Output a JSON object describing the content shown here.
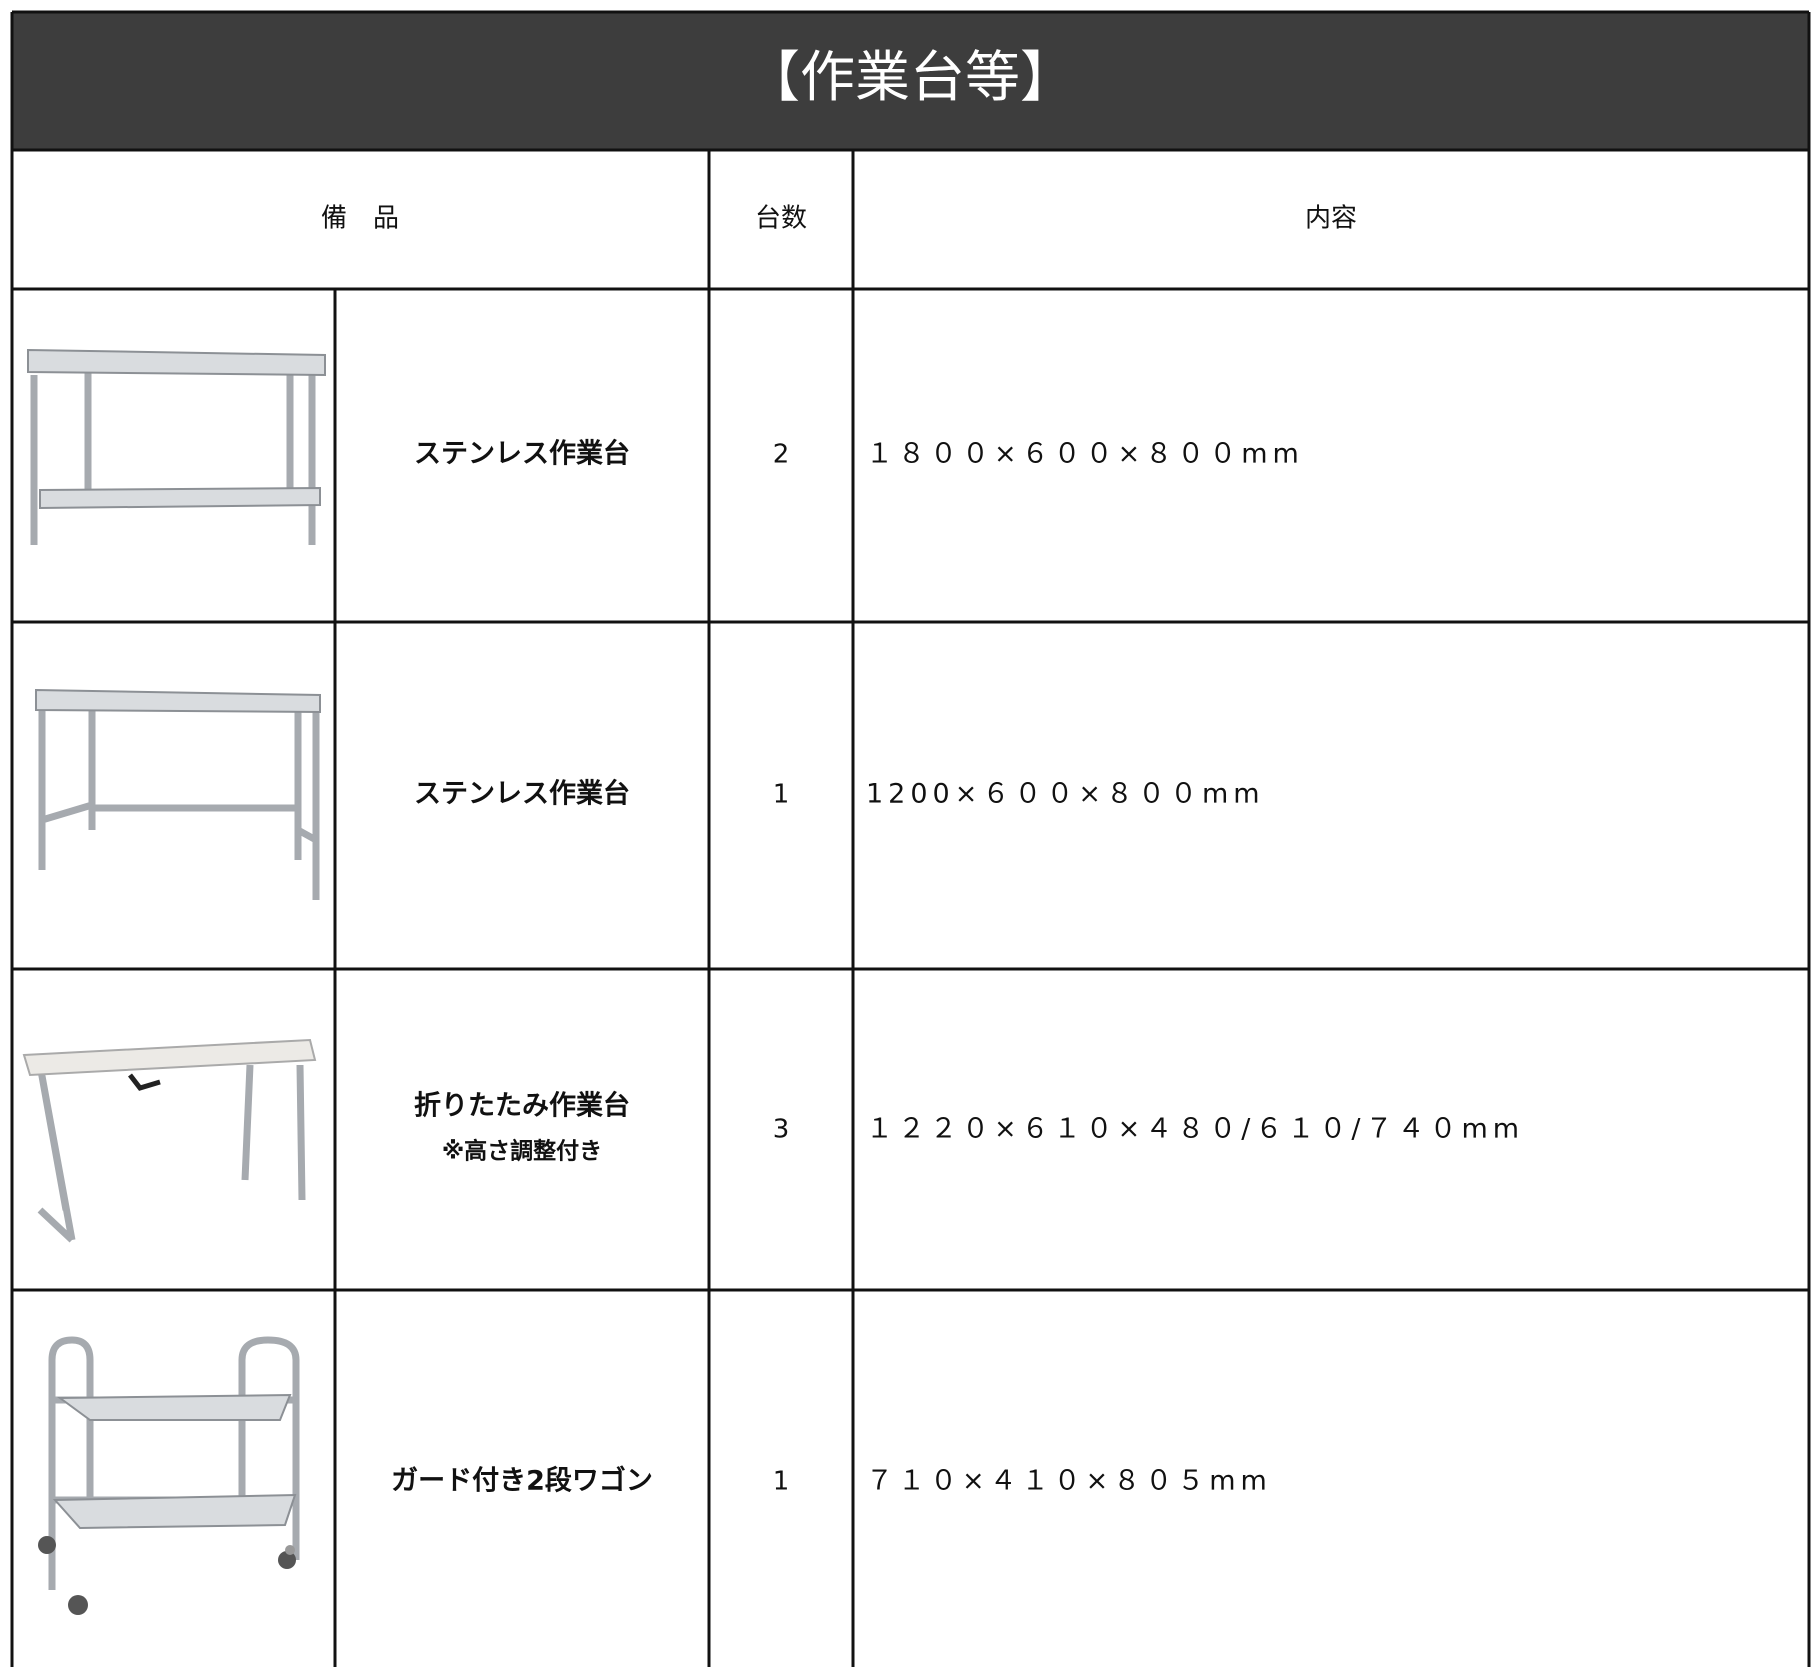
{
  "header": {
    "title": "【作業台等】"
  },
  "table": {
    "columns": [
      "備　品",
      "台数",
      "内容"
    ],
    "rows": [
      {
        "name": "ステンレス作業台",
        "count": "2",
        "spec": "１８００×６００×８００mm"
      },
      {
        "name": "ステンレス作業台",
        "count": "1",
        "spec": "1200×６００×８００mm"
      },
      {
        "name": "折りたたみ作業台",
        "note": "※高さ調整付き",
        "count": "3",
        "spec": "１２２０×６１０×４８０/６１０/７４０mm"
      },
      {
        "name": "ガード付き2段ワゴン",
        "count": "1",
        "spec": "７１０×４１０×８０５mm"
      }
    ]
  }
}
